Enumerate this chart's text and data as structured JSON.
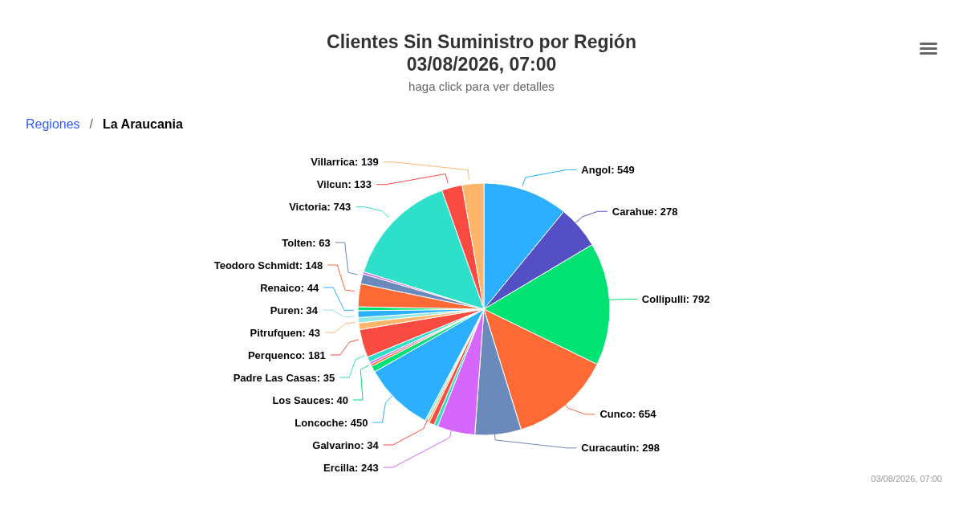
{
  "chart_data": {
    "type": "pie",
    "title": "Clientes Sin Suministro por Región\n03/08/2026, 07:00",
    "subtitle": "haga click para ver detalles",
    "annotations": [
      "Regiones",
      "/",
      "La Araucania",
      "03/08/2026, 07:00"
    ],
    "categories": [
      "Angol",
      "Carahue",
      "Collipulli",
      "Cunco",
      "Curacautin",
      "Ercilla",
      null,
      "Galvarino",
      null,
      null,
      "Loncoche",
      "Los Sauces",
      null,
      null,
      "Padre Las Casas",
      "Perquenco",
      "Pitrufquen",
      "Puren",
      "Renaico",
      null,
      "Teodoro Schmidt",
      "Tolten",
      null,
      "Victoria",
      "Vilcun",
      "Villarrica"
    ],
    "values": [
      549,
      278,
      792,
      654,
      298,
      243,
      25,
      34,
      15,
      15,
      450,
      40,
      15,
      15,
      35,
      181,
      43,
      34,
      44,
      25,
      148,
      63,
      15,
      743,
      133,
      139
    ],
    "value_labels": [
      "549",
      "278",
      "792",
      "654",
      "298",
      "243",
      null,
      "34",
      null,
      null,
      "450",
      "40",
      null,
      null,
      "35",
      "181",
      "43",
      "34",
      "44",
      null,
      "148",
      "63",
      null,
      "743",
      "133",
      "139"
    ],
    "colors": [
      "#2caffe",
      "#544fc5",
      "#00e272",
      "#fe6a35",
      "#6b8abc",
      "#d568fb",
      "#2ee0ca",
      "#fa4b42",
      "#feb56a",
      "#91e8e1",
      "#2caffe",
      "#00e272",
      "#fe6a35",
      "#d568fb",
      "#2ee0ca",
      "#fa4b42",
      "#feb56a",
      "#91e8e1",
      "#2caffe",
      "#00e272",
      "#fe6a35",
      "#6b8abc",
      "#d568fb",
      "#2ee0ca",
      "#fa4b42",
      "#feb56a"
    ],
    "legend": false
  }
}
